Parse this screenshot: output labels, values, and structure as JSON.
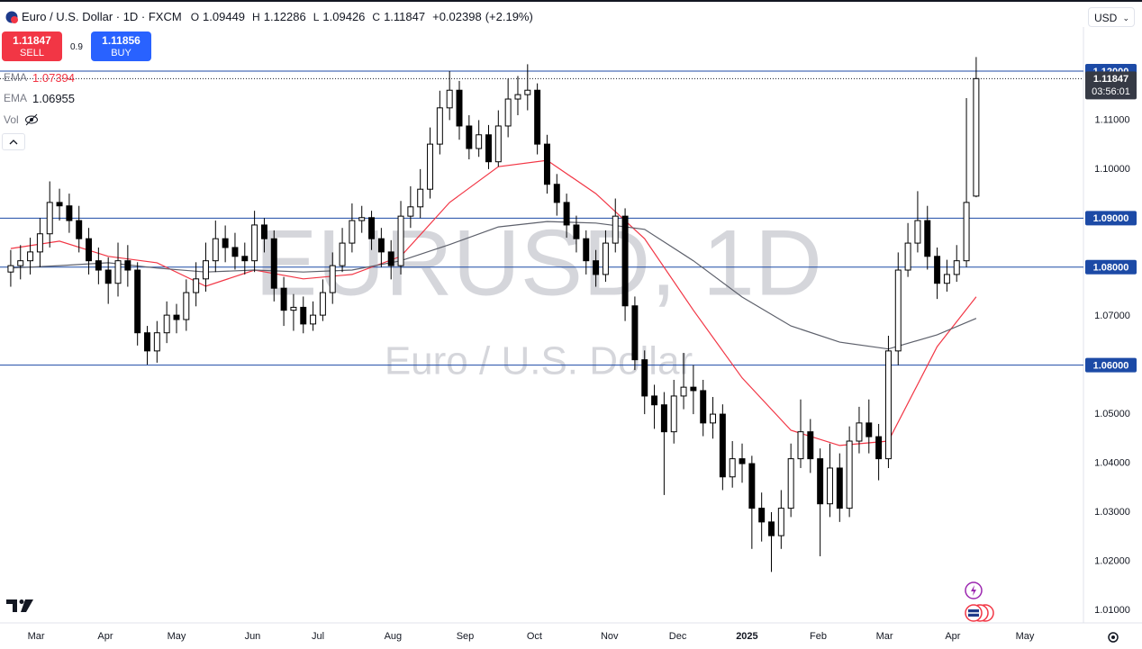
{
  "header": {
    "symbol": "Euro / U.S. Dollar · 1D · FXCM",
    "o_label": "O",
    "h_label": "H",
    "l_label": "L",
    "c_label": "C",
    "change": "+0.02398",
    "change_pct": "(+2.19%)",
    "sell_label": "SELL",
    "buy_label": "BUY",
    "spread": 0.9,
    "buy_price": 1.11856,
    "vol_label": "Vol",
    "currency": "USD",
    "countdown": "03:56:01",
    "watermark": "EURUSD, 1D",
    "watermark_sub": "Euro / U.S. Dollar"
  },
  "chart_data": {
    "type": "candlestick",
    "up_color": "#ffffff",
    "down_color": "#000000",
    "edge_color": "#000000",
    "xlim": [
      -1.1,
      110
    ],
    "xticks": [
      {
        "value": 2.6,
        "label": "Mar"
      },
      {
        "value": 9.7,
        "label": "Apr"
      },
      {
        "value": 17.0,
        "label": "May"
      },
      {
        "value": 24.8,
        "label": "Jun"
      },
      {
        "value": 31.5,
        "label": "Jul"
      },
      {
        "value": 39.2,
        "label": "Aug"
      },
      {
        "value": 46.6,
        "label": "Sep"
      },
      {
        "value": 53.7,
        "label": "Oct"
      },
      {
        "value": 61.4,
        "label": "Nov"
      },
      {
        "value": 68.4,
        "label": "Dec"
      },
      {
        "value": 75.5,
        "label": "2025"
      },
      {
        "value": 82.8,
        "label": "Feb"
      },
      {
        "value": 89.6,
        "label": "Mar"
      },
      {
        "value": 96.6,
        "label": "Apr"
      },
      {
        "value": 104.0,
        "label": "May"
      }
    ],
    "ylim": [
      1.0074,
      1.129
    ],
    "yticks": [
      {
        "value": 1.01,
        "label": "1.01000"
      },
      {
        "value": 1.02,
        "label": "1.02000"
      },
      {
        "value": 1.03,
        "label": "1.03000"
      },
      {
        "value": 1.04,
        "label": "1.04000"
      },
      {
        "value": 1.05,
        "label": "1.05000"
      },
      {
        "value": 1.07,
        "label": "1.07000"
      },
      {
        "value": 1.1,
        "label": "1.10000"
      },
      {
        "value": 1.11,
        "label": "1.11000"
      }
    ],
    "grid": false,
    "level_color": "#1c4aa6",
    "levels": [
      {
        "value": 1.12,
        "label": "1.12000"
      },
      {
        "value": 1.09,
        "label": "1.09000"
      },
      {
        "value": 1.08,
        "label": "1.08000"
      },
      {
        "value": 1.06,
        "label": "1.06000"
      }
    ],
    "open": [
      1.079,
      1.0803,
      1.0813,
      1.0831,
      1.0868,
      1.0932,
      1.0925,
      1.0895,
      1.0858,
      1.0813,
      1.0794,
      1.0767,
      1.0813,
      1.0794,
      1.0666,
      1.0629,
      1.0666,
      1.0702,
      1.0693,
      1.0748,
      1.0776,
      1.0813,
      1.0858,
      1.084,
      1.0822,
      1.0813,
      1.0886,
      1.0858,
      1.0757,
      1.0712,
      1.0718,
      1.0684,
      1.0702,
      1.0748,
      1.0803,
      1.0849,
      1.0895,
      1.0901,
      1.0858,
      1.0831,
      1.0803,
      1.0904,
      1.0923,
      1.0959,
      1.1051,
      1.1125,
      1.1161,
      1.1088,
      1.1042,
      1.107,
      1.1015,
      1.1088,
      1.1143,
      1.1152,
      1.1161,
      1.1051,
      1.0969,
      1.0932,
      1.0886,
      1.0858,
      1.0813,
      1.0785,
      1.0849,
      1.0904,
      1.0721,
      1.0611,
      1.0537,
      1.0519,
      1.0464,
      1.0537,
      1.0555,
      1.0548,
      1.0482,
      1.05,
      1.0372,
      1.0409,
      1.0399,
      1.0308,
      1.028,
      1.0252,
      1.0308,
      1.0409,
      1.0464,
      1.0409,
      1.0317,
      1.039,
      1.0308,
      1.0445,
      1.0482,
      1.0454,
      1.0409,
      1.0629,
      1.0794,
      1.0849,
      1.0895,
      1.0822,
      1.0767,
      1.0785,
      1.0813,
      1.09449
    ],
    "high": [
      1.0835,
      1.0845,
      1.086,
      1.09,
      1.0975,
      1.096,
      1.095,
      1.0925,
      1.088,
      1.084,
      1.082,
      1.085,
      1.0845,
      1.081,
      1.068,
      1.069,
      1.073,
      1.0725,
      1.0775,
      1.081,
      1.085,
      1.0895,
      1.0885,
      1.087,
      1.085,
      1.0915,
      1.09,
      1.0875,
      1.078,
      1.0745,
      1.074,
      1.073,
      1.0775,
      1.083,
      1.088,
      1.093,
      1.0925,
      1.0915,
      1.088,
      1.0855,
      1.0935,
      1.0965,
      1.1,
      1.1085,
      1.116,
      1.12,
      1.118,
      1.111,
      1.11,
      1.109,
      1.112,
      1.1185,
      1.119,
      1.1214,
      1.1175,
      1.107,
      1.099,
      1.095,
      1.0905,
      1.0875,
      1.0835,
      1.0875,
      1.094,
      1.092,
      1.074,
      1.063,
      1.056,
      1.0545,
      1.057,
      1.0625,
      1.06,
      1.057,
      1.0535,
      1.052,
      1.0445,
      1.044,
      1.0415,
      1.034,
      1.03,
      1.0345,
      1.044,
      1.053,
      1.049,
      1.043,
      1.044,
      1.042,
      1.0475,
      1.0515,
      1.053,
      1.048,
      1.066,
      1.083,
      1.089,
      1.0955,
      1.0925,
      1.084,
      1.0815,
      1.0845,
      1.1145,
      1.12286
    ],
    "low": [
      1.076,
      1.0775,
      1.0785,
      1.08,
      1.084,
      1.0895,
      1.087,
      1.083,
      1.0785,
      1.0765,
      1.0725,
      1.074,
      1.076,
      1.064,
      1.0601,
      1.0605,
      1.0645,
      1.0665,
      1.067,
      1.072,
      1.075,
      1.079,
      1.081,
      1.0795,
      1.0785,
      1.079,
      1.083,
      1.073,
      1.068,
      1.067,
      1.0665,
      1.067,
      1.069,
      1.0725,
      1.079,
      1.083,
      1.087,
      1.0835,
      1.08,
      1.0775,
      1.0785,
      1.088,
      1.09,
      1.094,
      1.103,
      1.11,
      1.106,
      1.102,
      1.1025,
      1.1,
      1.1005,
      1.1065,
      1.111,
      1.112,
      1.103,
      1.095,
      1.0905,
      1.086,
      1.083,
      1.0785,
      1.076,
      1.077,
      1.083,
      1.069,
      1.059,
      1.05,
      1.047,
      1.0335,
      1.044,
      1.051,
      1.05,
      1.0455,
      1.045,
      1.0345,
      1.035,
      1.036,
      1.0225,
      1.024,
      1.0178,
      1.0225,
      1.029,
      1.039,
      1.038,
      1.021,
      1.029,
      1.028,
      1.029,
      1.042,
      1.042,
      1.0365,
      1.039,
      1.06,
      1.078,
      1.083,
      1.0795,
      1.0735,
      1.075,
      1.077,
      1.08,
      1.09426
    ],
    "close": [
      1.0803,
      1.0813,
      1.0831,
      1.0868,
      1.0932,
      1.0925,
      1.0895,
      1.0858,
      1.0813,
      1.0794,
      1.0767,
      1.0813,
      1.0794,
      1.0666,
      1.0629,
      1.0666,
      1.0702,
      1.0693,
      1.0748,
      1.0776,
      1.0813,
      1.0858,
      1.084,
      1.0822,
      1.0813,
      1.0886,
      1.0858,
      1.0757,
      1.0712,
      1.0718,
      1.0684,
      1.0702,
      1.0748,
      1.0803,
      1.0849,
      1.0895,
      1.0901,
      1.0858,
      1.0831,
      1.0803,
      1.0904,
      1.0923,
      1.0959,
      1.1051,
      1.1125,
      1.1161,
      1.1088,
      1.1042,
      1.107,
      1.1015,
      1.1088,
      1.1143,
      1.1152,
      1.1161,
      1.1051,
      1.0969,
      1.0932,
      1.0886,
      1.0858,
      1.0813,
      1.0785,
      1.0849,
      1.0904,
      1.0721,
      1.0611,
      1.0537,
      1.0519,
      1.0464,
      1.0537,
      1.0555,
      1.0548,
      1.0482,
      1.05,
      1.0372,
      1.0409,
      1.0399,
      1.0308,
      1.028,
      1.0252,
      1.0308,
      1.0409,
      1.0464,
      1.0409,
      1.0317,
      1.039,
      1.0308,
      1.0445,
      1.0482,
      1.0454,
      1.0409,
      1.0629,
      1.0794,
      1.0849,
      1.0895,
      1.0822,
      1.0767,
      1.0785,
      1.0813,
      1.0932,
      1.11847
    ],
    "series": [
      {
        "name": "EMA",
        "color": "#f23645",
        "x": [
          0,
          5,
          10,
          15,
          20,
          25,
          30,
          35,
          40,
          45,
          50,
          55,
          60,
          65,
          70,
          75,
          80,
          85,
          90,
          95,
          99
        ],
        "values": [
          1.0838,
          1.0853,
          1.0822,
          1.0809,
          1.0761,
          1.0794,
          1.0776,
          1.0785,
          1.0822,
          1.0932,
          1.1005,
          1.1018,
          1.095,
          1.0858,
          1.0712,
          1.0574,
          1.0467,
          1.0436,
          1.0445,
          1.0638,
          1.07394
        ]
      },
      {
        "name": "EMA",
        "color": "#5d606b",
        "x": [
          0,
          5,
          10,
          15,
          20,
          25,
          30,
          35,
          40,
          45,
          50,
          55,
          60,
          65,
          70,
          75,
          80,
          85,
          90,
          95,
          99
        ],
        "values": [
          1.0798,
          1.0803,
          1.0809,
          1.0798,
          1.079,
          1.0794,
          1.079,
          1.0794,
          1.0813,
          1.0846,
          1.0882,
          1.0893,
          1.089,
          1.0877,
          1.0813,
          1.0739,
          1.068,
          1.0647,
          1.0633,
          1.0662,
          1.06955
        ]
      }
    ]
  }
}
